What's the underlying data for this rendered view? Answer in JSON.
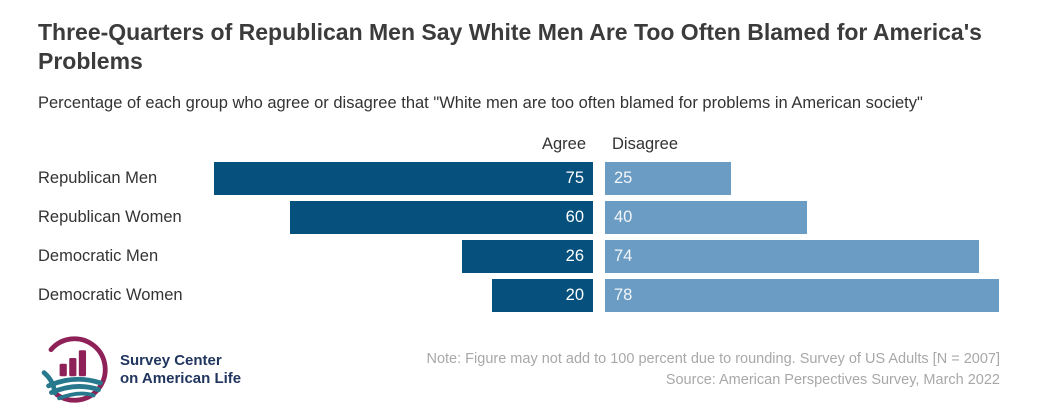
{
  "header": {
    "title": "Three-Quarters of Republican Men Say White Men Are Too Often Blamed for America's Problems",
    "subtitle": "Percentage of each group who agree or disagree that \"White men are too often blamed for problems in American society\""
  },
  "chart_data": {
    "type": "bar",
    "orientation": "diverging-horizontal",
    "categories": [
      "Republican Men",
      "Republican Women",
      "Democratic Men",
      "Democratic Women"
    ],
    "series": [
      {
        "name": "Agree",
        "values": [
          75,
          60,
          26,
          20
        ],
        "color": "#05507c"
      },
      {
        "name": "Disagree",
        "values": [
          25,
          40,
          74,
          78
        ],
        "color": "#6b9cc3"
      }
    ],
    "xlim": [
      0,
      100
    ],
    "value_labels_shown": true,
    "axes_hidden": true,
    "legend_position": "column-headers-above-bars"
  },
  "colors": {
    "agree_bar": "#05507c",
    "disagree_bar": "#6b9cc3",
    "title_text": "#3b3b3b",
    "body_text": "#333333",
    "note_text": "#a8a8a8",
    "logo_maroon": "#8e2158",
    "logo_teal": "#27788c",
    "logo_text": "#21365f"
  },
  "footer": {
    "logo_line1": "Survey Center",
    "logo_line2": "on American Life",
    "note_line1": "Note: Figure may not add to 100 percent due to rounding. Survey of US Adults [N = 2007]",
    "note_line2": "Source: American Perspectives Survey, March 2022"
  }
}
